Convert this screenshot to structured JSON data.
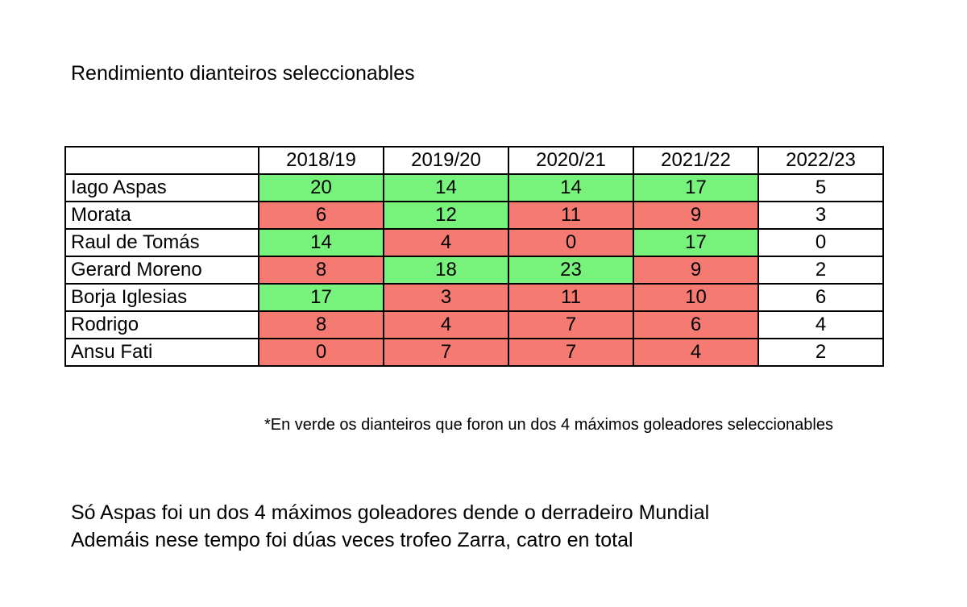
{
  "chart_data": {
    "type": "table",
    "title": "Rendimiento dianteiros seleccionables",
    "columns": [
      "",
      "2018/19",
      "2019/20",
      "2020/21",
      "2021/22",
      "2022/23"
    ],
    "colors": {
      "green": "#77f27a",
      "red": "#f47a72",
      "plain": "#ffffff"
    },
    "rows": [
      {
        "player": "Iago Aspas",
        "values": [
          "20",
          "14",
          "14",
          "17",
          "5"
        ],
        "highlight": [
          "green",
          "green",
          "green",
          "green",
          "plain"
        ],
        "bold": [
          true,
          false,
          false,
          true,
          false
        ]
      },
      {
        "player": "Morata",
        "values": [
          "6",
          "12",
          "11",
          "9",
          "3"
        ],
        "highlight": [
          "red",
          "green",
          "red",
          "red",
          "plain"
        ],
        "bold": [
          false,
          false,
          false,
          false,
          false
        ]
      },
      {
        "player": "Raul de Tomás",
        "values": [
          "14",
          "4",
          "0",
          "17",
          "0"
        ],
        "highlight": [
          "green",
          "red",
          "red",
          "green",
          "plain"
        ],
        "bold": [
          false,
          false,
          false,
          true,
          false
        ]
      },
      {
        "player": "Gerard Moreno",
        "values": [
          "8",
          "18",
          "23",
          "9",
          "2"
        ],
        "highlight": [
          "red",
          "green",
          "green",
          "red",
          "plain"
        ],
        "bold": [
          false,
          true,
          true,
          false,
          false
        ]
      },
      {
        "player": "Borja Iglesias",
        "values": [
          "17",
          "3",
          "11",
          "10",
          "6"
        ],
        "highlight": [
          "green",
          "red",
          "red",
          "red",
          "plain"
        ],
        "bold": [
          false,
          false,
          false,
          false,
          false
        ]
      },
      {
        "player": "Rodrigo",
        "values": [
          "8",
          "4",
          "7",
          "6",
          "4"
        ],
        "highlight": [
          "red",
          "red",
          "red",
          "red",
          "plain"
        ],
        "bold": [
          false,
          false,
          false,
          false,
          false
        ]
      },
      {
        "player": "Ansu Fati",
        "values": [
          "0",
          "7",
          "7",
          "4",
          "2"
        ],
        "highlight": [
          "red",
          "red",
          "red",
          "red",
          "plain"
        ],
        "bold": [
          false,
          false,
          false,
          false,
          false
        ]
      }
    ],
    "footnote": "*En verde os dianteiros que foron un dos 4 máximos goleadores seleccionables",
    "notes": [
      "Só Aspas foi un dos 4 máximos goleadores dende o derradeiro Mundial",
      "Ademáis nese tempo foi dúas veces trofeo Zarra, catro en total"
    ]
  }
}
